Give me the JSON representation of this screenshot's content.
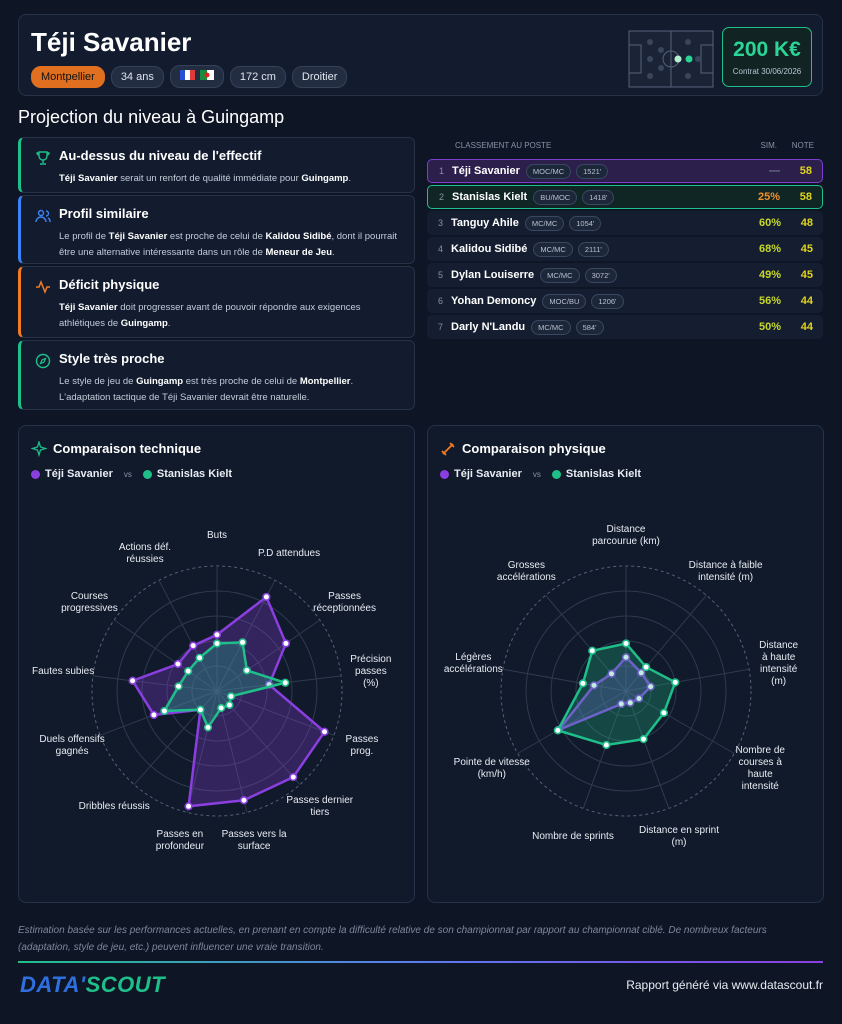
{
  "header": {
    "name": "Téji Savanier",
    "club": "Montpellier",
    "age": "34 ans",
    "height": "172 cm",
    "foot": "Droitier",
    "price": "200 K€",
    "contract": "Contrat 30/06/2026"
  },
  "section_title": "Projection du niveau à Guingamp",
  "insights": [
    {
      "title": "Au-dessus du niveau de l'effectif",
      "color": "#1fbf8a",
      "text": [
        {
          "t": "Téji Savanier",
          "b": true
        },
        {
          "t": " serait un renfort de qualité immédiate pour "
        },
        {
          "t": "Guingamp",
          "b": true
        },
        {
          "t": "."
        }
      ]
    },
    {
      "title": "Profil similaire",
      "color": "#3b82f6",
      "text": [
        {
          "t": "Le profil de "
        },
        {
          "t": "Téji Savanier",
          "b": true
        },
        {
          "t": " est proche de celui de "
        },
        {
          "t": "Kalidou Sidibé",
          "b": true
        },
        {
          "t": ", dont il pourrait être une alternative intéressante dans un rôle de "
        },
        {
          "t": "Meneur de Jeu",
          "b": true
        },
        {
          "t": "."
        }
      ]
    },
    {
      "title": "Déficit physique",
      "color": "#f07b24",
      "text": [
        {
          "t": "Téji Savanier",
          "b": true
        },
        {
          "t": " doit progresser avant de pouvoir répondre aux exigences athlétiques de "
        },
        {
          "t": "Guingamp",
          "b": true
        },
        {
          "t": "."
        }
      ]
    },
    {
      "title": "Style très proche",
      "color": "#1fbf8a",
      "text": [
        {
          "t": "Le style de jeu de "
        },
        {
          "t": "Guingamp",
          "b": true
        },
        {
          "t": " est très proche de celui de "
        },
        {
          "t": "Montpellier",
          "b": true
        },
        {
          "t": ". L'adaptation tactique de Téji Savanier devrait être naturelle."
        }
      ]
    }
  ],
  "ranking": {
    "title": "CLASSEMENT AU POSTE",
    "sim_label": "SIM.",
    "note_label": "NOTE",
    "rows": [
      {
        "rank": 1,
        "name": "Téji Savanier",
        "position": "MOC/MC",
        "minutes": "1521'",
        "sim": "—",
        "note": 58
      },
      {
        "rank": 2,
        "name": "Stanislas Kielt",
        "position": "BU/MOC",
        "minutes": "1418'",
        "sim": "25%",
        "note": 58
      },
      {
        "rank": 3,
        "name": "Tanguy Ahile",
        "position": "MC/MC",
        "minutes": "1054'",
        "sim": "60%",
        "note": 48
      },
      {
        "rank": 4,
        "name": "Kalidou Sidibé",
        "position": "MC/MC",
        "minutes": "2111'",
        "sim": "68%",
        "note": 45
      },
      {
        "rank": 5,
        "name": "Dylan Louiserre",
        "position": "MC/MC",
        "minutes": "3072'",
        "sim": "49%",
        "note": 45
      },
      {
        "rank": 6,
        "name": "Yohan Demoncy",
        "position": "MOC/BU",
        "minutes": "1206'",
        "sim": "56%",
        "note": 44
      },
      {
        "rank": 7,
        "name": "Darly N'Landu",
        "position": "MC/MC",
        "minutes": "584'",
        "sim": "50%",
        "note": 44
      }
    ]
  },
  "chart_data": [
    {
      "type": "radar",
      "title": "Comparaison technique",
      "vs": "vs",
      "rlim": [
        0,
        100
      ],
      "rticks": [
        20,
        40,
        60,
        80,
        100
      ],
      "axes": [
        "Buts",
        "P.D attendues",
        "Passes réceptionnées",
        "Précision passes (%)",
        "Passes prog.",
        "Passes dernier tiers",
        "Passes vers la surface",
        "Passes en profondeur",
        "Dribbles réussis",
        "Duels offensifs gagnés",
        "Fautes subies",
        "Courses progressives",
        "Actions déf. réussies"
      ],
      "series": [
        {
          "name": "Téji Savanier",
          "color": "#8b3fe0",
          "values": [
            45,
            85,
            67,
            42,
            92,
            92,
            90,
            95,
            20,
            54,
            68,
            38,
            41
          ]
        },
        {
          "name": "Stanislas Kielt",
          "color": "#1fbf8a",
          "values": [
            38,
            44,
            29,
            55,
            12,
            15,
            14,
            30,
            20,
            45,
            31,
            28,
            30
          ]
        }
      ]
    },
    {
      "type": "radar",
      "title": "Comparaison physique",
      "vs": "vs",
      "rlim": [
        0,
        100
      ],
      "rticks": [
        20,
        40,
        60,
        80,
        100
      ],
      "axes": [
        "Distance parcourue (km)",
        "Distance à faible intensité (m)",
        "Distance à haute intensité (m)",
        "Nombre de courses à haute intensité",
        "Distance en sprint (m)",
        "Nombre de sprints",
        "Pointe de vitesse (km/h)",
        "Légères accélérations",
        "Grosses accélérations"
      ],
      "series": [
        {
          "name": "Téji Savanier",
          "color": "#8b3fe0",
          "values": [
            27,
            19,
            20,
            12,
            10,
            11,
            62,
            26,
            18
          ]
        },
        {
          "name": "Stanislas Kielt",
          "color": "#1fbf8a",
          "values": [
            38,
            25,
            40,
            35,
            41,
            46,
            63,
            35,
            42
          ]
        }
      ]
    }
  ],
  "footer": {
    "disclaimer": "Estimation basée sur les performances actuelles, en prenant en compte la difficulté relative de son championnat par rapport au championnat ciblé. De nombreux facteurs (adaptation, style de jeu, etc.) peuvent influencer une vraie transition.",
    "logo_left": "DATA'",
    "logo_right": "SCOUT",
    "credit": "Rapport généré via www.datascout.fr"
  }
}
